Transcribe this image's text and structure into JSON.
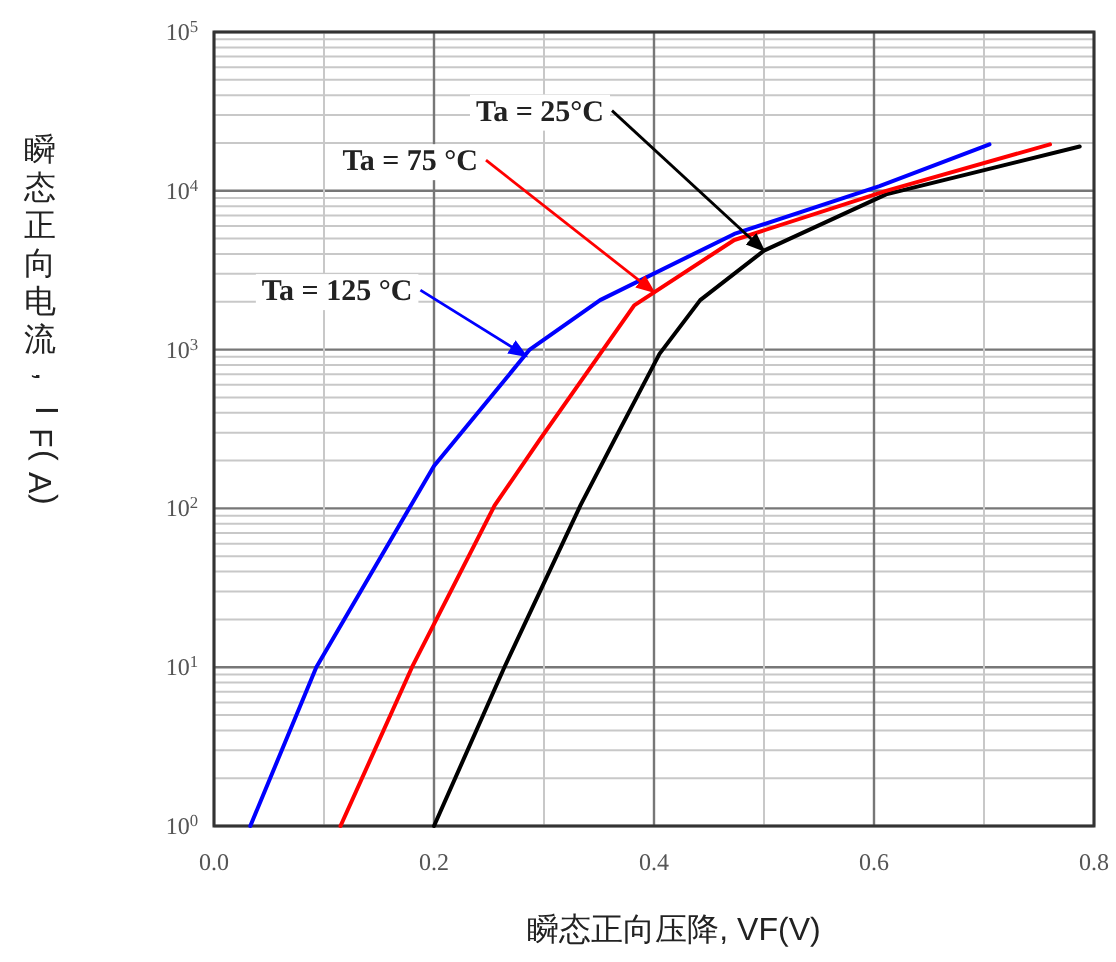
{
  "chart_data": {
    "type": "line",
    "xlabel": "瞬态正向压降, VF(V)",
    "ylabel": "瞬态正向电流, IF(A)",
    "log": "y",
    "xlim": [
      0,
      0.8
    ],
    "xticks": [
      {
        "value": 0,
        "label": "0.0"
      },
      0.2,
      0.4,
      0.6,
      {
        "value": 0.8,
        "label": "0.8"
      }
    ],
    "ylim": [
      1,
      100000
    ],
    "yticks": [
      {
        "value": 1,
        "label": "10$^{0}$"
      },
      {
        "value": 10,
        "label": "10$^{1}$"
      },
      {
        "value": 100,
        "label": "10$^{2}$"
      },
      {
        "value": 1000,
        "label": "10$^{3}$"
      },
      {
        "value": 10000,
        "label": "10$^{4}$"
      },
      {
        "value": 100000,
        "label": "10$^{5}$"
      }
    ],
    "grid": true,
    "series": [
      {
        "color": "#000000",
        "x": [
          0.2,
          0.264,
          0.333,
          0.364,
          0.405,
          0.442,
          0.5,
          0.611,
          0.787
        ],
        "values": [
          1,
          10,
          104,
          270,
          940,
          2050,
          4200,
          9500,
          19000
        ]
      },
      {
        "color": "#ff0000",
        "x": [
          0.115,
          0.18,
          0.255,
          0.296,
          0.351,
          0.382,
          0.473,
          0.611,
          0.76
        ],
        "values": [
          1,
          10,
          104,
          270,
          940,
          1900,
          4900,
          10000,
          19600
        ]
      },
      {
        "color": "#0000ff",
        "x": [
          0.033,
          0.093,
          0.2,
          0.287,
          0.351,
          0.473,
          0.605,
          0.705
        ],
        "values": [
          1,
          10,
          185,
          1000,
          2050,
          5350,
          10700,
          19600
        ]
      }
    ],
    "annotations": [
      {
        "text": "Ta = 25°C",
        "x": 0.5,
        "y": 4200
      },
      {
        "text": "Ta = 75 °C",
        "x": 0.4,
        "y": 2300
      },
      {
        "text": "Ta = 125 °C",
        "x": 0.284,
        "y": 910
      }
    ]
  }
}
